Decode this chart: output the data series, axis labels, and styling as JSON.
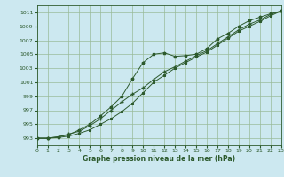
{
  "title": "Graphe pression niveau de la mer (hPa)",
  "bg_color": "#cce8f0",
  "grid_color": "#99bb99",
  "line_color": "#2d5a2d",
  "xlim": [
    0,
    23
  ],
  "ylim": [
    992,
    1012
  ],
  "yticks": [
    993,
    995,
    997,
    999,
    1001,
    1003,
    1005,
    1007,
    1009,
    1011
  ],
  "xticks": [
    0,
    1,
    2,
    3,
    4,
    5,
    6,
    7,
    8,
    9,
    10,
    11,
    12,
    13,
    14,
    15,
    16,
    17,
    18,
    19,
    20,
    21,
    22,
    23
  ],
  "series1_x": [
    0,
    1,
    2,
    3,
    4,
    5,
    6,
    7,
    8,
    9,
    10,
    11,
    12,
    13,
    14,
    15,
    16,
    17,
    18,
    19,
    20,
    21,
    22,
    23
  ],
  "series1_y": [
    993.0,
    993.0,
    993.2,
    993.5,
    994.2,
    995.0,
    996.2,
    997.5,
    999.0,
    1001.5,
    1003.8,
    1005.0,
    1005.2,
    1004.7,
    1004.8,
    1005.0,
    1005.8,
    1007.2,
    1008.0,
    1009.0,
    1009.8,
    1010.3,
    1010.8,
    1011.2
  ],
  "series2_x": [
    0,
    1,
    2,
    3,
    4,
    5,
    6,
    7,
    8,
    9,
    10,
    11,
    12,
    13,
    14,
    15,
    16,
    17,
    18,
    19,
    20,
    21,
    22,
    23
  ],
  "series2_y": [
    993.0,
    993.0,
    993.2,
    993.6,
    994.0,
    994.8,
    995.8,
    997.0,
    998.2,
    999.3,
    1000.2,
    1001.4,
    1002.5,
    1003.2,
    1004.0,
    1004.8,
    1005.5,
    1006.5,
    1007.5,
    1008.5,
    1009.3,
    1009.9,
    1010.7,
    1011.2
  ],
  "series3_x": [
    0,
    1,
    2,
    3,
    4,
    5,
    6,
    7,
    8,
    9,
    10,
    11,
    12,
    13,
    14,
    15,
    16,
    17,
    18,
    19,
    20,
    21,
    22,
    23
  ],
  "series3_y": [
    993.0,
    993.0,
    993.1,
    993.3,
    993.7,
    994.2,
    995.0,
    995.8,
    996.8,
    998.0,
    999.5,
    1001.0,
    1002.0,
    1003.0,
    1003.8,
    1004.6,
    1005.3,
    1006.3,
    1007.3,
    1008.3,
    1009.0,
    1009.7,
    1010.5,
    1011.2
  ]
}
